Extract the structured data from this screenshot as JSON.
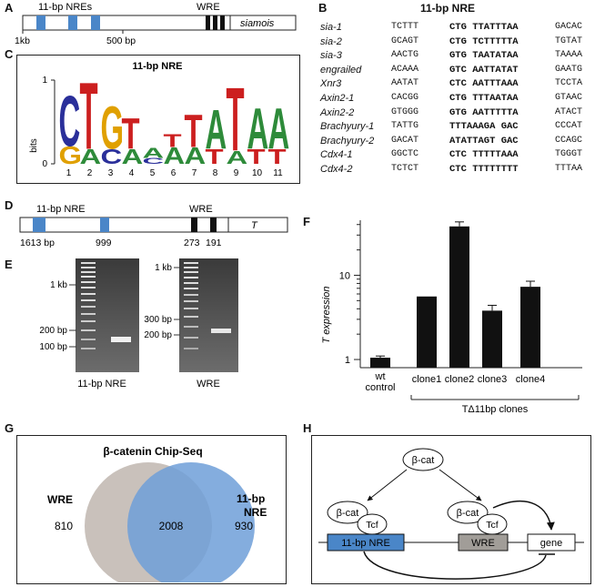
{
  "panels": {
    "A": "A",
    "B": "B",
    "C": "C",
    "D": "D",
    "E": "E",
    "F": "F",
    "G": "G",
    "H": "H"
  },
  "panel_a": {
    "nres_label": "11-bp NREs",
    "wre_label": "WRE",
    "gene": "siamois",
    "tick_1kb": "1kb",
    "tick_500": "500 bp"
  },
  "panel_b": {
    "title": "11-bp NRE",
    "rows": [
      {
        "name": "sia-1",
        "flank5": "TCTTT",
        "core": "CTG TTATTTAA",
        "flank3": "GACAC"
      },
      {
        "name": "sia-2",
        "flank5": "GCAGT",
        "core": "CTG TCTTTTTA",
        "flank3": "TGTAT"
      },
      {
        "name": "sia-3",
        "flank5": "AACTG",
        "core": "GTG TAATATAA",
        "flank3": "TAAAA"
      },
      {
        "name": "engrailed",
        "flank5": "ACAAA",
        "core": "GTC AATTATAT",
        "flank3": "GAATG"
      },
      {
        "name": "Xnr3",
        "flank5": "AATAT",
        "core": "CTC AATTTAAA",
        "flank3": "TCCTA"
      },
      {
        "name": "Axin2-1",
        "flank5": "CACGG",
        "core": "CTG TTTAATAA",
        "flank3": "GTAAC"
      },
      {
        "name": "Axin2-2",
        "flank5": "GTGGG",
        "core": "GTG AATTTTTA",
        "flank3": "ATACT"
      },
      {
        "name": "Brachyury-1",
        "flank5": "TATTG",
        "core": "TTTAAAGA GAC",
        "flank3": "CCCAT"
      },
      {
        "name": "Brachyury-2",
        "flank5": "GACAT",
        "core": "ATATTAGT GAC",
        "flank3": "CCAGC"
      },
      {
        "name": "Cdx4-1",
        "flank5": "GGCTC",
        "core": "CTC TTTTTAAA",
        "flank3": "TGGGT"
      },
      {
        "name": "Cdx4-2",
        "flank5": "TCTCT",
        "core": "CTC TTTTTTTT",
        "flank3": "TTTAA"
      }
    ]
  },
  "panel_c": {
    "title": "11-bp NRE",
    "ylabel": "bits",
    "yticks": [
      "0",
      "1"
    ],
    "positions": [
      "1",
      "2",
      "3",
      "4",
      "5",
      "6",
      "7",
      "8",
      "9",
      "10",
      "11"
    ],
    "logo": [
      [
        {
          "l": "G",
          "c": "#e0a000",
          "h": 0.22
        },
        {
          "l": "C",
          "c": "#2a2f9a",
          "h": 0.62
        }
      ],
      [
        {
          "l": "A",
          "c": "#2e8b3a",
          "h": 0.18
        },
        {
          "l": "T",
          "c": "#cc1f1f",
          "h": 0.82
        }
      ],
      [
        {
          "l": "C",
          "c": "#2a2f9a",
          "h": 0.18
        },
        {
          "l": "G",
          "c": "#e0a000",
          "h": 0.52
        }
      ],
      [
        {
          "l": "A",
          "c": "#2e8b3a",
          "h": 0.18
        },
        {
          "l": "T",
          "c": "#cc1f1f",
          "h": 0.38
        }
      ],
      [
        {
          "l": "C",
          "c": "#2a2f9a",
          "h": 0.07
        },
        {
          "l": "A",
          "c": "#2e8b3a",
          "h": 0.12
        }
      ],
      [
        {
          "l": "A",
          "c": "#2e8b3a",
          "h": 0.2
        },
        {
          "l": "T",
          "c": "#cc1f1f",
          "h": 0.16
        }
      ],
      [
        {
          "l": "A",
          "c": "#2e8b3a",
          "h": 0.2
        },
        {
          "l": "T",
          "c": "#cc1f1f",
          "h": 0.4
        }
      ],
      [
        {
          "l": "T",
          "c": "#cc1f1f",
          "h": 0.18
        },
        {
          "l": "A",
          "c": "#2e8b3a",
          "h": 0.48
        }
      ],
      [
        {
          "l": "A",
          "c": "#2e8b3a",
          "h": 0.16
        },
        {
          "l": "T",
          "c": "#cc1f1f",
          "h": 0.78
        }
      ],
      [
        {
          "l": "T",
          "c": "#cc1f1f",
          "h": 0.18
        },
        {
          "l": "A",
          "c": "#2e8b3a",
          "h": 0.5
        }
      ],
      [
        {
          "l": "T",
          "c": "#cc1f1f",
          "h": 0.18
        },
        {
          "l": "A",
          "c": "#2e8b3a",
          "h": 0.5
        }
      ]
    ]
  },
  "panel_d": {
    "nre_label": "11-bp NRE",
    "wre_label": "WRE",
    "gene": "T",
    "pos1613": "1613 bp",
    "pos999": "999",
    "pos273": "273",
    "pos191": "191"
  },
  "panel_e": {
    "gel1": {
      "ladder_1kb": "1 kb",
      "ladder_200": "200 bp",
      "ladder_100": "100 bp",
      "caption": "11-bp NRE"
    },
    "gel2": {
      "ladder_1kb": "1 kb",
      "ladder_300": "300 bp",
      "ladder_200": "200 bp",
      "caption": "WRE"
    }
  },
  "chart_data": {
    "type": "bar",
    "ylabel": "T expression",
    "yscale": "log",
    "ylim": [
      0.8,
      45
    ],
    "yticks": [
      "1",
      "10"
    ],
    "categories": [
      "wt control",
      "clone1",
      "clone2",
      "clone3",
      "clone4"
    ],
    "values": [
      1.05,
      5.6,
      38,
      3.8,
      7.3
    ],
    "errors": [
      0.05,
      0,
      5,
      0.6,
      1.2
    ],
    "group_label": "TΔ11bp clones"
  },
  "panel_g": {
    "title": "β-catenin Chip-Seq",
    "left_label": "WRE",
    "right_label_1": "11-bp",
    "right_label_2": "NRE",
    "left_only": "810",
    "overlap": "2008",
    "right_only": "930",
    "colors": {
      "left": "#c9c1bb",
      "right": "#6f9fd8"
    }
  },
  "panel_h": {
    "bcat_top": "β-cat",
    "bcat_left": "β-cat",
    "tcf_left": "Tcf",
    "bcat_right": "β-cat",
    "tcf_right": "Tcf",
    "nre_box": "11-bp NRE",
    "wre_box": "WRE",
    "gene_box": "gene"
  },
  "colors": {
    "nre_blue": "#4a86c8",
    "wre_grey": "#a19d98",
    "black": "#111111"
  }
}
